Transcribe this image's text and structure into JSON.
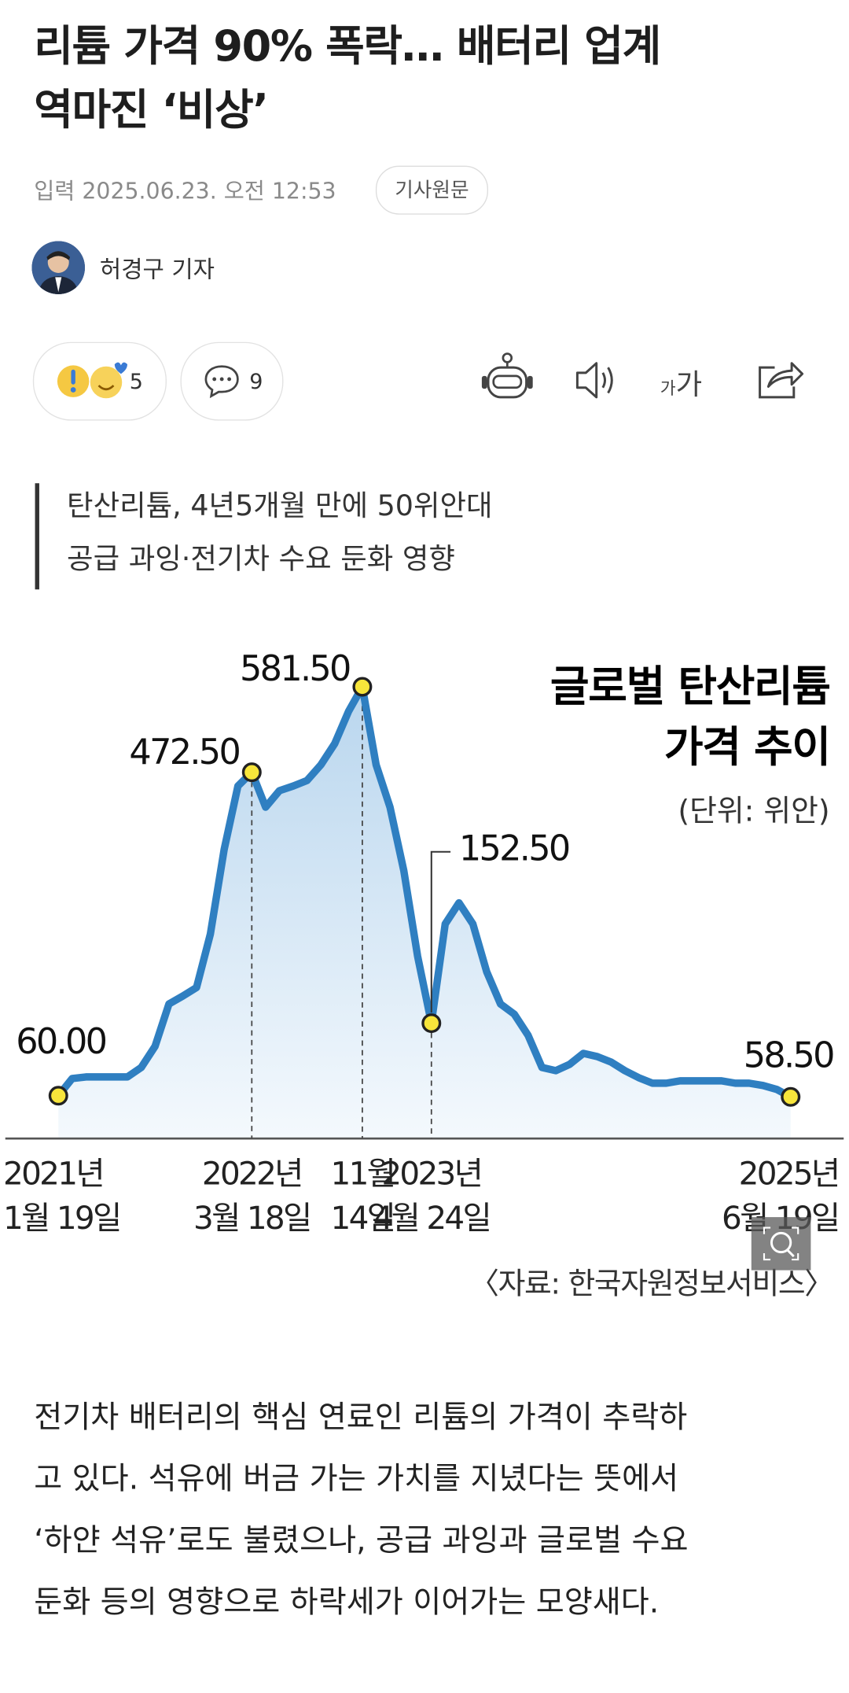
{
  "header": {
    "title_lines": [
      "리튬 가격 90% 폭락… 배터리 업계",
      "역마진 ‘비상’"
    ]
  },
  "meta": {
    "published": "입력 2025.06.23. 오전 12:53",
    "original_button": "기사원문"
  },
  "author": {
    "name": "허경구 기자"
  },
  "reactions": {
    "like_count": 5,
    "comment_count": 9,
    "font_size_label": [
      "가",
      "가"
    ]
  },
  "subheadings": [
    "탄산리튬, 4년5개월 만에 50위안대",
    "공급 과잉·전기차 수요 둔화 영향"
  ],
  "chart_data": {
    "type": "line",
    "title_lines": [
      "글로벌 탄산리튬",
      "가격 추이"
    ],
    "unit": "(단위: 위안)",
    "source": "〈자료: 한국자원정보서비스〉",
    "categories": [
      "2021년\n1월 19일",
      null,
      null,
      null,
      null,
      null,
      null,
      null,
      null,
      null,
      null,
      null,
      null,
      null,
      "2022년\n3월 18일",
      null,
      null,
      null,
      null,
      null,
      null,
      null,
      "11월\n14일",
      null,
      null,
      null,
      null,
      "2023년\n4월 24일",
      null,
      null,
      null,
      null,
      null,
      null,
      null,
      null,
      null,
      null,
      null,
      null,
      null,
      null,
      null,
      null,
      null,
      null,
      null,
      null,
      null,
      null,
      null,
      null,
      null,
      "2025년\n6월 19일"
    ],
    "values": [
      60,
      82,
      84,
      84,
      84,
      84,
      96,
      123,
      177,
      187,
      198,
      266,
      374,
      455,
      472.5,
      428,
      449,
      455,
      462,
      482,
      509,
      550,
      581.5,
      482,
      428,
      347,
      238,
      152.5,
      279,
      306,
      279,
      218,
      177,
      164,
      137,
      96,
      92,
      100,
      114,
      110,
      103,
      92,
      83,
      76,
      76,
      79,
      79,
      79,
      79,
      76,
      76,
      73,
      68,
      58.5
    ],
    "value_labels": [
      "60.00",
      null,
      null,
      null,
      null,
      null,
      null,
      null,
      null,
      null,
      null,
      null,
      null,
      null,
      "472.50",
      null,
      null,
      null,
      null,
      null,
      null,
      null,
      "581.50",
      null,
      null,
      null,
      null,
      "152.50",
      null,
      null,
      null,
      null,
      null,
      null,
      null,
      null,
      null,
      null,
      null,
      null,
      null,
      null,
      null,
      null,
      null,
      null,
      null,
      null,
      null,
      null,
      null,
      null,
      null,
      "58.50"
    ],
    "color": "#2f7fc1",
    "ylim": [
      0,
      600
    ]
  },
  "body_lines": [
    "전기차 배터리의 핵심 연료인 리튬의 가격이 추락하",
    "고 있다. 석유에 버금 가는 가치를 지녔다는 뜻에서",
    "‘하얀 석유’로도 불렸으나, 공급 과잉과 글로벌 수요",
    "둔화 등의 영향으로 하락세가 이어가는 모양새다."
  ]
}
